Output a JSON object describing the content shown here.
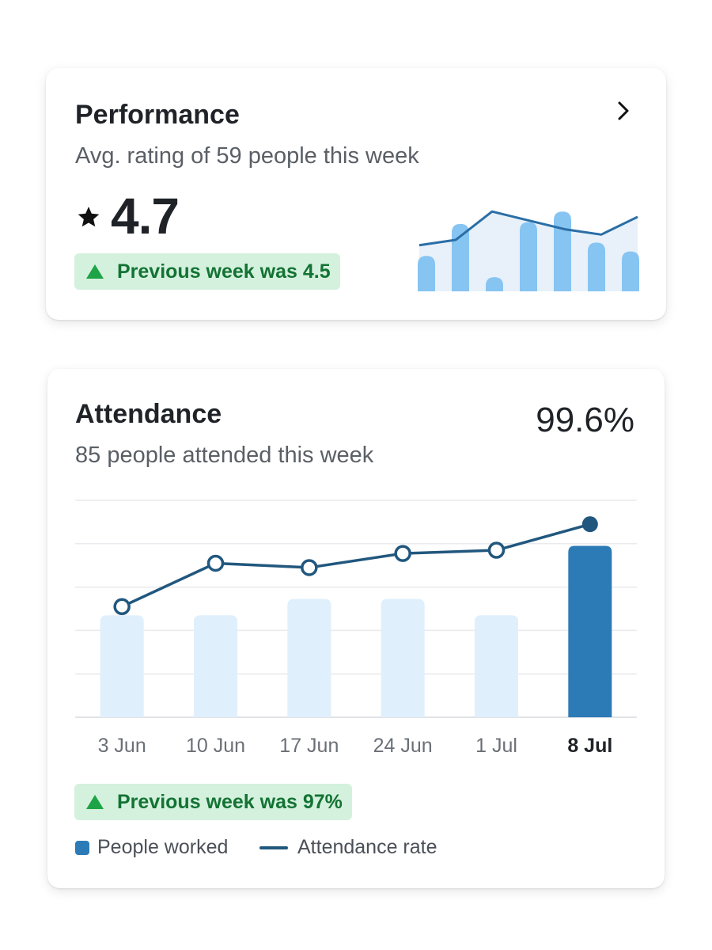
{
  "performance": {
    "title": "Performance",
    "subtitle": "Avg. rating of 59 people this week",
    "rating": "4.7",
    "badge": "Previous week was 4.5",
    "icons": {
      "star": "star-icon",
      "chevron": "chevron-right-icon",
      "trend": "triangle-up-icon"
    },
    "sparkline": {
      "type": "bar+line",
      "bars": [
        0.4,
        0.76,
        0.16,
        0.78,
        0.9,
        0.55,
        0.45
      ],
      "line": [
        0.52,
        0.58,
        0.9,
        0.8,
        0.7,
        0.64,
        0.84
      ]
    }
  },
  "attendance": {
    "title": "Attendance",
    "subtitle": "85 people attended this week",
    "value": "99.6%",
    "badge": "Previous week was 97%",
    "legend": {
      "bar_label": "People worked",
      "line_label": "Attendance rate"
    },
    "icons": {
      "trend": "triangle-up-icon"
    }
  },
  "chart_data": {
    "type": "bar",
    "categories": [
      "3 Jun",
      "10 Jun",
      "17 Jun",
      "24 Jun",
      "1 Jul",
      "8 Jul"
    ],
    "series": [
      {
        "name": "People worked",
        "values": [
          0.47,
          0.47,
          0.545,
          0.545,
          0.47,
          0.79
        ]
      },
      {
        "name": "Attendance rate",
        "values": [
          0.51,
          0.71,
          0.69,
          0.755,
          0.77,
          0.89
        ]
      }
    ],
    "ylim": [
      0,
      1
    ],
    "grid": true,
    "highlight_index": 5,
    "legend": "bottom-left",
    "colors": {
      "bar": "#e0effc",
      "bar_highlight": "#2c7bb6",
      "line": "#21577e",
      "grid": "#e8eaed"
    }
  },
  "colors": {
    "text": "#1f2328",
    "muted": "#5a5f66",
    "badge_bg": "#d4f1de",
    "badge_text": "#137333",
    "spark_bar": "#86c4f2",
    "spark_area": "#e8f1f9",
    "spark_line": "#2a6ea6"
  }
}
